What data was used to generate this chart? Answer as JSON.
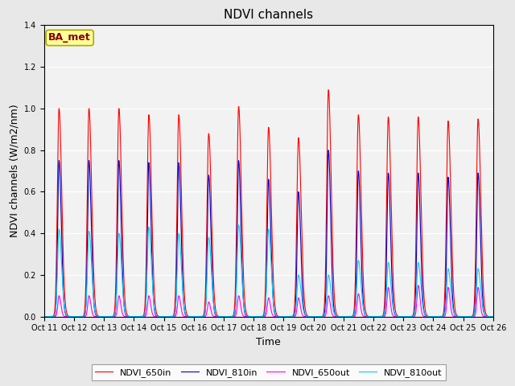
{
  "title": "NDVI channels",
  "xlabel": "Time",
  "ylabel": "NDVI channels (W/m2/nm)",
  "annotation": "BA_met",
  "ylim": [
    0.0,
    1.4
  ],
  "yticks": [
    0.0,
    0.2,
    0.4,
    0.6,
    0.8,
    1.0,
    1.2,
    1.4
  ],
  "xtick_labels": [
    "Oct 11",
    "Oct 12",
    "Oct 13",
    "Oct 14",
    "Oct 15",
    "Oct 16",
    "Oct 17",
    "Oct 18",
    "Oct 19",
    "Oct 20",
    "Oct 21",
    "Oct 22",
    "Oct 23",
    "Oct 24",
    "Oct 25",
    "Oct 26"
  ],
  "colors": {
    "NDVI_650in": "#ff0000",
    "NDVI_810in": "#0000cc",
    "NDVI_650out": "#ff00ff",
    "NDVI_810out": "#00ccff"
  },
  "fig_bg": "#e8e8e8",
  "plot_bg": "#f2f2f2",
  "legend_bg": "#ffff99",
  "legend_edge": "#aaaa00",
  "annotation_color": "#880000",
  "n_cycles": 15,
  "peaks_650in": [
    1.0,
    1.0,
    1.0,
    0.97,
    0.97,
    0.88,
    1.01,
    0.91,
    0.86,
    1.09,
    0.97,
    0.96,
    0.96,
    0.94,
    0.95
  ],
  "peaks_810in": [
    0.75,
    0.75,
    0.75,
    0.74,
    0.74,
    0.68,
    0.75,
    0.66,
    0.6,
    0.8,
    0.7,
    0.69,
    0.69,
    0.67,
    0.69
  ],
  "peaks_650out": [
    0.1,
    0.1,
    0.1,
    0.1,
    0.1,
    0.07,
    0.1,
    0.09,
    0.09,
    0.1,
    0.11,
    0.14,
    0.15,
    0.14,
    0.14
  ],
  "peaks_810out": [
    0.42,
    0.41,
    0.4,
    0.43,
    0.4,
    0.38,
    0.44,
    0.42,
    0.2,
    0.2,
    0.27,
    0.26,
    0.26,
    0.23,
    0.23
  ],
  "line_widths": {
    "in": 0.8,
    "out": 0.8
  }
}
